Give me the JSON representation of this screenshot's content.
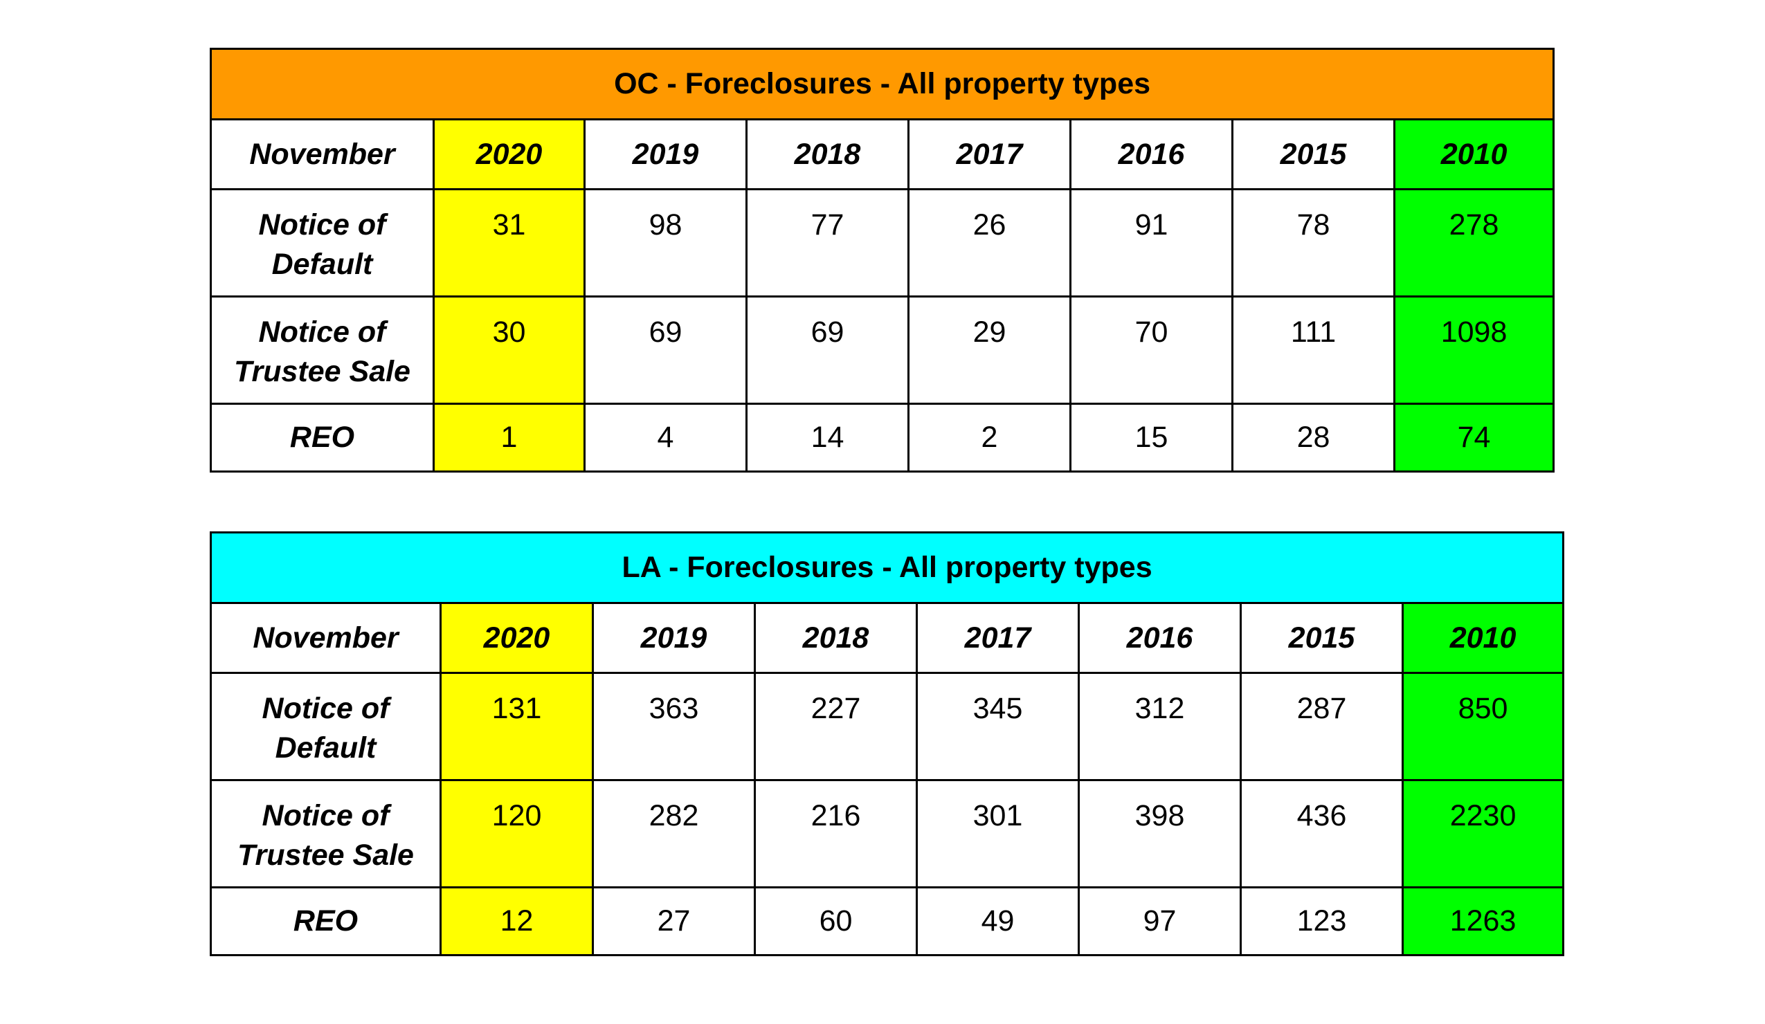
{
  "tables": [
    {
      "title": "OC - Foreclosures - All property types",
      "title_color": "#ff9900",
      "highlight_2020": "#ffff00",
      "highlight_2010": "#00ff00",
      "header": [
        "November",
        "2020",
        "2019",
        "2018",
        "2017",
        "2016",
        "2015",
        "2010"
      ],
      "rows": [
        {
          "label_line1": "Notice of",
          "label_line2": "Default",
          "values": [
            "31",
            "98",
            "77",
            "26",
            "91",
            "78",
            "278"
          ]
        },
        {
          "label_line1": "Notice of",
          "label_line2": "Trustee Sale",
          "values": [
            "30",
            "69",
            "69",
            "29",
            "70",
            "111",
            "1098"
          ]
        },
        {
          "label_line1": "REO",
          "label_line2": "",
          "values": [
            "1",
            "4",
            "14",
            "2",
            "15",
            "28",
            "74"
          ]
        }
      ]
    },
    {
      "title": "LA - Foreclosures - All property types",
      "title_color": "#00ffff",
      "highlight_2020": "#ffff00",
      "highlight_2010": "#00ff00",
      "header": [
        "November",
        "2020",
        "2019",
        "2018",
        "2017",
        "2016",
        "2015",
        "2010"
      ],
      "rows": [
        {
          "label_line1": "Notice of",
          "label_line2": "Default",
          "values": [
            "131",
            "363",
            "227",
            "345",
            "312",
            "287",
            "850"
          ]
        },
        {
          "label_line1": "Notice of",
          "label_line2": "Trustee Sale",
          "values": [
            "120",
            "282",
            "216",
            "301",
            "398",
            "436",
            "2230"
          ]
        },
        {
          "label_line1": "REO",
          "label_line2": "",
          "values": [
            "12",
            "27",
            "60",
            "49",
            "97",
            "123",
            "1263"
          ]
        }
      ]
    }
  ]
}
